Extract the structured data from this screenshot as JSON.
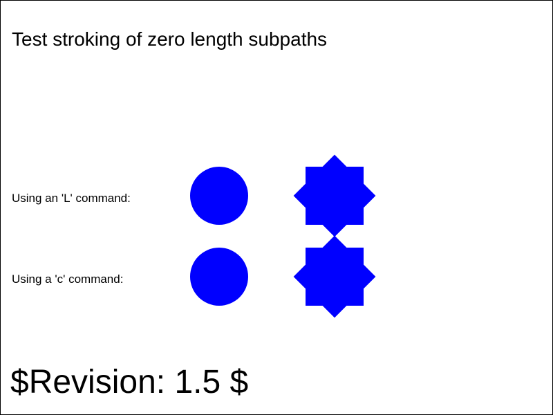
{
  "title": "Test stroking of zero length subpaths",
  "rows": [
    {
      "label": "Using an 'L' command:",
      "shapes": [
        "circle",
        "star"
      ]
    },
    {
      "label": "Using a 'c' command:",
      "shapes": [
        "circle",
        "star"
      ]
    }
  ],
  "revision": "$Revision: 1.5 $",
  "colors": {
    "shape_fill": "#0000ff",
    "frame": "#000000",
    "background": "#ffffff"
  }
}
